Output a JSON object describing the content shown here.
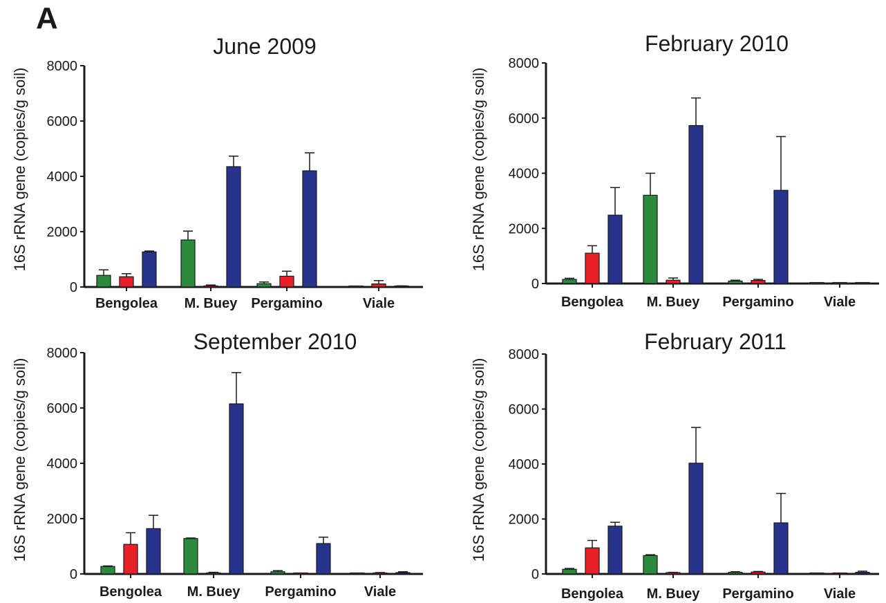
{
  "figure": {
    "panel_label": "A"
  },
  "colors": {
    "series": [
      "#2b8a3e",
      "#e8202a",
      "#26348b"
    ],
    "axis": "#1a1a1a"
  },
  "chart_data": [
    {
      "type": "bar",
      "title": "June 2009",
      "ylabel": "16S rRNA gene (copies/g soil)",
      "xlabel": "",
      "ylim": [
        0,
        8000
      ],
      "yticks": [
        "0",
        "2000",
        "4000",
        "6000",
        "8000"
      ],
      "categories": [
        "Bengolea",
        "M. Buey",
        "Pergamino",
        "Viale"
      ],
      "series": [
        {
          "values": [
            420,
            1700,
            120,
            0
          ],
          "errors": [
            200,
            320,
            60,
            0
          ]
        },
        {
          "values": [
            370,
            40,
            390,
            110
          ],
          "errors": [
            110,
            30,
            180,
            120
          ]
        },
        {
          "values": [
            1270,
            4350,
            4200,
            20
          ],
          "errors": [
            30,
            380,
            650,
            20
          ]
        }
      ]
    },
    {
      "type": "bar",
      "title": "February 2010",
      "ylabel": "16S rRNA gene (copies/g soil)",
      "xlabel": "",
      "ylim": [
        0,
        8000
      ],
      "yticks": [
        "0",
        "2000",
        "4000",
        "6000",
        "8000"
      ],
      "categories": [
        "Bengolea",
        "M. Buey",
        "Pergamino",
        "Viale"
      ],
      "series": [
        {
          "values": [
            150,
            3200,
            90,
            0
          ],
          "errors": [
            40,
            800,
            30,
            0
          ]
        },
        {
          "values": [
            1100,
            120,
            110,
            0
          ],
          "errors": [
            270,
            80,
            40,
            0
          ]
        },
        {
          "values": [
            2480,
            5730,
            3380,
            10
          ],
          "errors": [
            1000,
            1000,
            1950,
            10
          ]
        }
      ]
    },
    {
      "type": "bar",
      "title": "September 2010",
      "ylabel": "16S rRNA gene (copies/g soil)",
      "xlabel": "",
      "ylim": [
        0,
        8000
      ],
      "yticks": [
        "0",
        "2000",
        "4000",
        "6000",
        "8000"
      ],
      "categories": [
        "Bengolea",
        "M. Buey",
        "Pergamino",
        "Viale"
      ],
      "series": [
        {
          "values": [
            270,
            1280,
            80,
            0
          ],
          "errors": [
            20,
            20,
            40,
            0
          ]
        },
        {
          "values": [
            1070,
            40,
            20,
            30
          ],
          "errors": [
            420,
            20,
            10,
            20
          ]
        },
        {
          "values": [
            1640,
            6150,
            1100,
            50
          ],
          "errors": [
            480,
            1130,
            230,
            30
          ]
        }
      ]
    },
    {
      "type": "bar",
      "title": "February 2011",
      "ylabel": "16S rRNA gene (copies/g soil)",
      "xlabel": "",
      "ylim": [
        0,
        8000
      ],
      "yticks": [
        "0",
        "2000",
        "4000",
        "6000",
        "8000"
      ],
      "categories": [
        "Bengolea",
        "M. Buey",
        "Pergamino",
        "Viale"
      ],
      "series": [
        {
          "values": [
            170,
            670,
            60,
            0
          ],
          "errors": [
            30,
            30,
            20,
            0
          ]
        },
        {
          "values": [
            950,
            50,
            70,
            0
          ],
          "errors": [
            270,
            10,
            20,
            0
          ]
        },
        {
          "values": [
            1740,
            4030,
            1860,
            60
          ],
          "errors": [
            140,
            1300,
            1070,
            40
          ]
        }
      ]
    }
  ]
}
